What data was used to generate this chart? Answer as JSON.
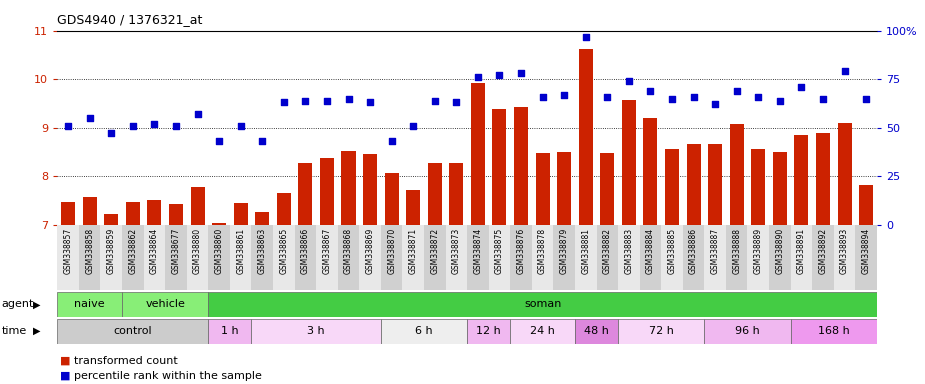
{
  "title": "GDS4940 / 1376321_at",
  "samples": [
    "GSM338857",
    "GSM338858",
    "GSM338859",
    "GSM338862",
    "GSM338864",
    "GSM338677",
    "GSM338880",
    "GSM338860",
    "GSM338861",
    "GSM338863",
    "GSM338865",
    "GSM338866",
    "GSM338867",
    "GSM338868",
    "GSM338869",
    "GSM338870",
    "GSM338871",
    "GSM338872",
    "GSM338873",
    "GSM338874",
    "GSM338875",
    "GSM338876",
    "GSM338878",
    "GSM338879",
    "GSM338881",
    "GSM338882",
    "GSM338883",
    "GSM338884",
    "GSM338885",
    "GSM338886",
    "GSM338887",
    "GSM338888",
    "GSM338889",
    "GSM338890",
    "GSM338891",
    "GSM338892",
    "GSM338893",
    "GSM338894"
  ],
  "bar_values": [
    7.47,
    7.56,
    7.22,
    7.46,
    7.51,
    7.43,
    7.78,
    7.03,
    7.44,
    7.27,
    7.65,
    8.27,
    8.38,
    8.52,
    8.45,
    8.06,
    7.72,
    8.27,
    8.27,
    9.93,
    9.38,
    9.42,
    8.48,
    8.49,
    10.62,
    8.48,
    9.58,
    9.2,
    8.55,
    8.67,
    8.67,
    9.08,
    8.56,
    8.5,
    8.85,
    8.88,
    9.1,
    7.82
  ],
  "scatter_percentile": [
    51,
    55,
    47,
    51,
    52,
    51,
    57,
    43,
    51,
    43,
    63,
    64,
    64,
    65,
    63,
    43,
    51,
    64,
    63,
    76,
    77,
    78,
    66,
    67,
    97,
    66,
    74,
    69,
    65,
    66,
    62,
    69,
    66,
    64,
    71,
    65,
    79,
    65
  ],
  "bar_color": "#cc2200",
  "scatter_color": "#0000cc",
  "ylim_left": [
    7,
    11
  ],
  "ylim_right": [
    0,
    100
  ],
  "yticks_left": [
    7,
    8,
    9,
    10,
    11
  ],
  "yticks_right": [
    0,
    25,
    50,
    75,
    100
  ],
  "agent_groups": [
    {
      "label": "naive",
      "start": 0,
      "end": 3,
      "color": "#88dd77"
    },
    {
      "label": "vehicle",
      "start": 3,
      "end": 7,
      "color": "#88dd77"
    },
    {
      "label": "soman",
      "start": 7,
      "end": 38,
      "color": "#44cc44"
    }
  ],
  "time_groups": [
    {
      "label": "control",
      "start": 0,
      "end": 7,
      "color": "#cccccc"
    },
    {
      "label": "1 h",
      "start": 7,
      "end": 9,
      "color": "#f0b8f0"
    },
    {
      "label": "3 h",
      "start": 9,
      "end": 15,
      "color": "#f8d8f8"
    },
    {
      "label": "6 h",
      "start": 15,
      "end": 19,
      "color": "#eeeeee"
    },
    {
      "label": "12 h",
      "start": 19,
      "end": 21,
      "color": "#f0b8f0"
    },
    {
      "label": "24 h",
      "start": 21,
      "end": 24,
      "color": "#f8d8f8"
    },
    {
      "label": "48 h",
      "start": 24,
      "end": 26,
      "color": "#dd88dd"
    },
    {
      "label": "72 h",
      "start": 26,
      "end": 30,
      "color": "#f8d8f8"
    },
    {
      "label": "96 h",
      "start": 30,
      "end": 34,
      "color": "#f0b8f0"
    },
    {
      "label": "168 h",
      "start": 34,
      "end": 38,
      "color": "#ee99ee"
    }
  ],
  "legend_bar_label": "transformed count",
  "legend_scatter_label": "percentile rank within the sample"
}
